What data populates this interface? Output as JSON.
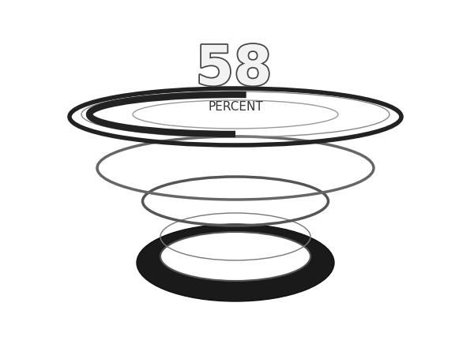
{
  "chart_data": {
    "type": "gauge",
    "values": [
      58
    ],
    "label": "PERCENT",
    "ylim": [
      0,
      100
    ],
    "color": "#222222"
  }
}
